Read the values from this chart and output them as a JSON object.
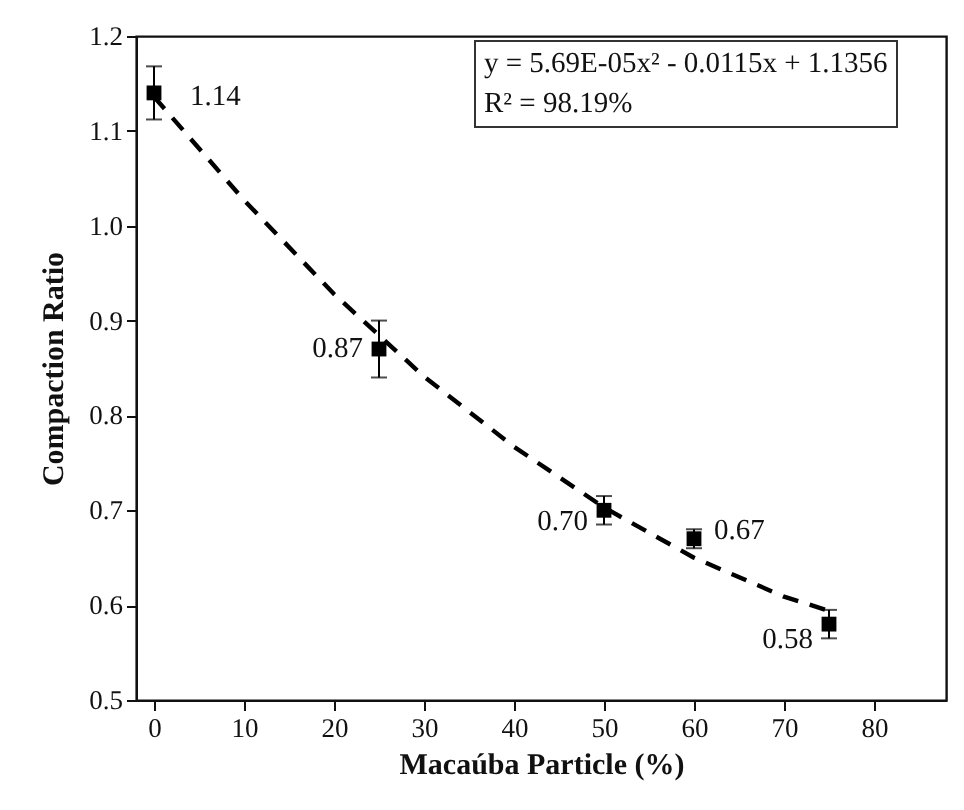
{
  "chart_data": {
    "type": "scatter",
    "xlabel": "Macaúba Particle (%)",
    "ylabel": "Compaction Ratio",
    "x": [
      0,
      25,
      50,
      60,
      75
    ],
    "series": [
      {
        "color": "#000000",
        "marker": "square",
        "values": [
          1.14,
          0.87,
          0.7,
          0.67,
          0.58
        ],
        "errors": [
          0.028,
          0.03,
          0.015,
          0.01,
          0.015
        ],
        "value_labels": [
          "1.14",
          "0.87",
          "0.70",
          "0.67",
          "0.58"
        ]
      },
      {
        "type": "line",
        "color": "#000000",
        "line_style": "dashed",
        "marker": "none",
        "x": [
          0,
          10,
          20,
          30,
          40,
          50,
          60,
          70,
          75
        ],
        "values": [
          1.136,
          1.027,
          0.928,
          0.841,
          0.767,
          0.703,
          0.65,
          0.609,
          0.594
        ]
      }
    ],
    "annotations": [
      "y = 5.69E-05x² - 0.0115x + 1.1356",
      "R² = 98.19%"
    ],
    "xlim": [
      -2,
      88
    ],
    "xticks": [
      0,
      10,
      20,
      30,
      40,
      50,
      60,
      70,
      80
    ],
    "ylim": [
      0.5,
      1.2
    ],
    "yticks": [
      {
        "value": 0.5,
        "label": "0.5"
      },
      {
        "value": 0.6,
        "label": "0.6"
      },
      {
        "value": 0.7,
        "label": "0.7"
      },
      {
        "value": 0.8,
        "label": "0.8"
      },
      {
        "value": 0.9,
        "label": "0.9"
      },
      {
        "value": 1.0,
        "label": "1.0"
      },
      {
        "value": 1.1,
        "label": "1.1"
      },
      {
        "value": 1.2,
        "label": "1.2"
      }
    ],
    "grid": false
  }
}
